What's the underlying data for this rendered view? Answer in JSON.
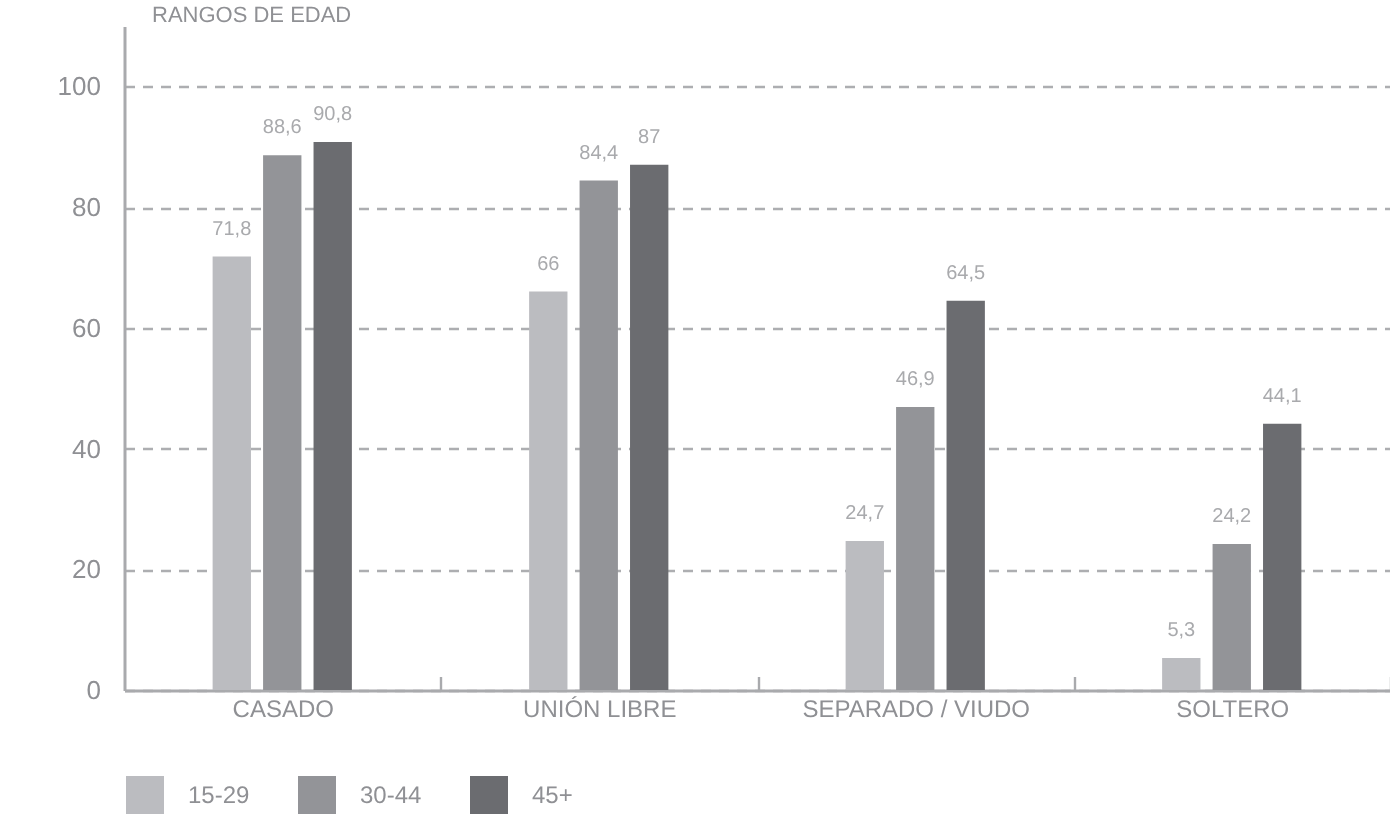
{
  "chart_data": {
    "type": "bar",
    "title": "RANGOS DE EDAD",
    "categories": [
      "CASADO",
      "UNIÓN LIBRE",
      "SEPARADO / VIUDO",
      "SOLTERO"
    ],
    "series": [
      {
        "name": "15-29",
        "color": "#bbbcc0",
        "values": [
          71.8,
          66,
          24.7,
          5.3
        ],
        "value_labels": [
          "71,8",
          "66",
          "24,7",
          "5,3"
        ]
      },
      {
        "name": "30-44",
        "color": "#939498",
        "values": [
          88.6,
          84.4,
          46.9,
          24.2
        ],
        "value_labels": [
          "88,6",
          "84,4",
          "46,9",
          "24,2"
        ]
      },
      {
        "name": "45+",
        "color": "#6b6c70",
        "values": [
          90.8,
          87,
          64.5,
          44.1
        ],
        "value_labels": [
          "90,8",
          "87",
          "64,5",
          "44,1"
        ]
      }
    ],
    "ylim": [
      0,
      110
    ],
    "yticks": [
      0,
      20,
      40,
      60,
      80,
      100
    ],
    "grid": "y",
    "legend": "bottom"
  }
}
